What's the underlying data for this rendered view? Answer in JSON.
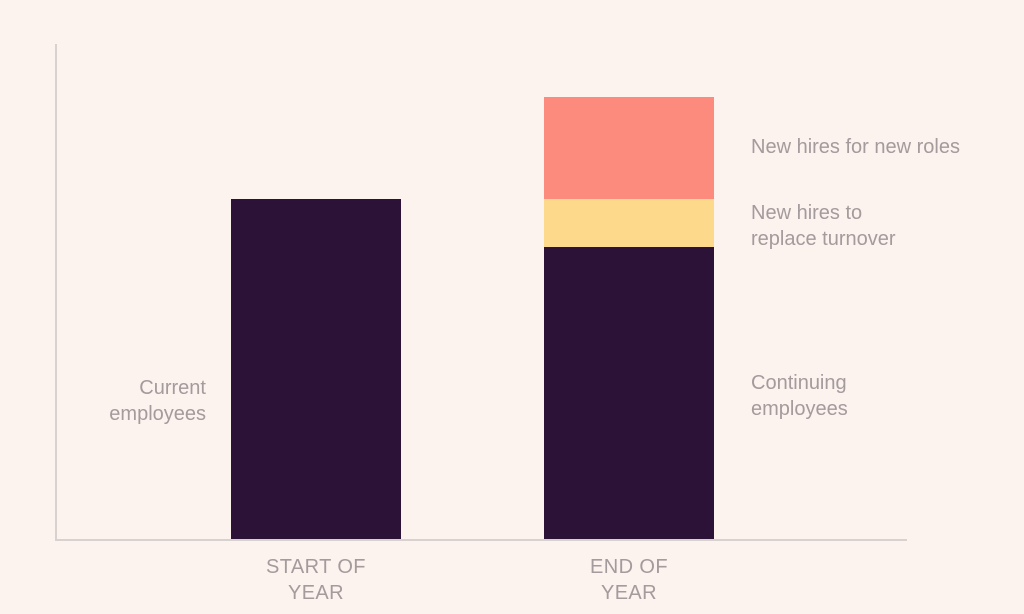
{
  "chart_data": {
    "type": "bar",
    "subtype": "stacked",
    "orientation": "vertical",
    "title": "",
    "xlabel": "",
    "ylabel": "",
    "grid": false,
    "axis_tick_labels_visible": false,
    "legend_position": "inline-annotations",
    "value_units": "relative headcount, start-of-year bar = 100 (no numeric axis shown; values estimated from bar heights)",
    "categories": [
      "START OF YEAR",
      "END OF YEAR"
    ],
    "bars": [
      {
        "category_line1": "START OF",
        "category_line2": "YEAR",
        "total": 100,
        "segments": [
          {
            "label": "Current employees",
            "value": 100,
            "color": "#2C1237"
          }
        ]
      },
      {
        "category_line1": "END OF",
        "category_line2": "YEAR",
        "total": 130,
        "segments": [
          {
            "label": "Continuing employees",
            "value": 86,
            "color": "#2C1237"
          },
          {
            "label": "New hires to replace turnover",
            "value": 14,
            "color": "#FDD98C"
          },
          {
            "label": "New hires for new roles",
            "value": 30,
            "color": "#FC8B7D"
          }
        ]
      }
    ],
    "annotations": [
      {
        "side": "left",
        "refers_to": "start-of-year dark bar",
        "text_lines": [
          "Current",
          "employees"
        ]
      },
      {
        "side": "right",
        "refers_to": "salmon top segment",
        "text_lines": [
          "New hires for new roles"
        ]
      },
      {
        "side": "right",
        "refers_to": "yellow middle segment",
        "text_lines": [
          "New hires to",
          "replace turnover"
        ]
      },
      {
        "side": "right",
        "refers_to": "dark bottom segment",
        "text_lines": [
          "Continuing",
          "employees"
        ]
      }
    ]
  },
  "colors": {
    "background": "#FCF2EE",
    "axis_line": "#D7D2CF",
    "label_text": "#A39B9C",
    "segment_dark_purple": "#2C1237",
    "segment_yellow": "#FDD98C",
    "segment_salmon": "#FC8B7D"
  }
}
